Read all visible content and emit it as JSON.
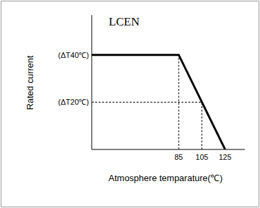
{
  "chart_data": {
    "type": "line",
    "title": "LCEN",
    "x_label": "Atmosphere temparature(℃)",
    "y_label": "Rated current",
    "x": [
      10,
      85,
      125
    ],
    "values": [
      100,
      100,
      0
    ],
    "color": "#000000",
    "xlim": [
      10,
      142
    ],
    "ylim": [
      0,
      142
    ],
    "xticks": [
      85,
      105,
      125
    ],
    "yticks": [
      {
        "value": 50,
        "label": "(ΔT20℃)"
      },
      {
        "value": 100,
        "label": "(ΔT40℃)"
      }
    ],
    "grid": false
  }
}
